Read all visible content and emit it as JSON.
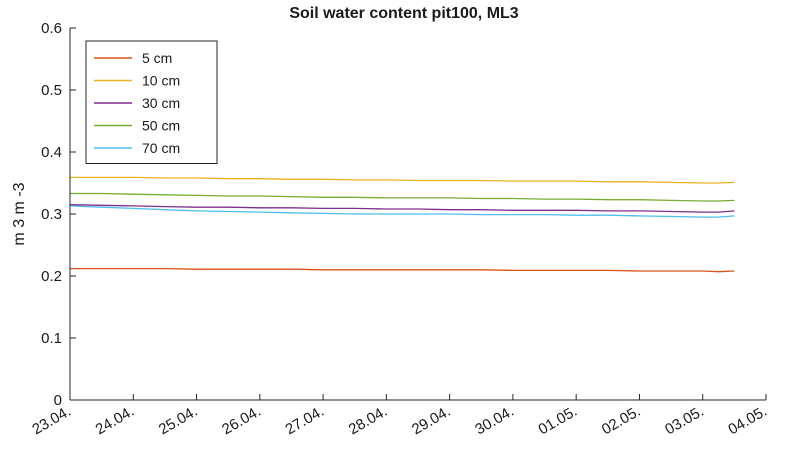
{
  "chart_data": {
    "type": "line",
    "title": "Soil water content pit100, ML3",
    "ylabel": "m 3 m -3",
    "xlabel": "",
    "x_ticks": [
      "23.04.",
      "24.04.",
      "25.04.",
      "26.04.",
      "27.04.",
      "28.04.",
      "29.04.",
      "30.04.",
      "01.05.",
      "02.05.",
      "03.05.",
      "04.05."
    ],
    "xlim": [
      0,
      11
    ],
    "ylim": [
      0,
      0.6
    ],
    "y_ticks": [
      0,
      0.1,
      0.2,
      0.3,
      0.4,
      0.5,
      0.6
    ],
    "grid": false,
    "legend_position": "top-left",
    "x": [
      0,
      0.5,
      1,
      1.5,
      2,
      2.5,
      3,
      3.5,
      4,
      4.5,
      5,
      5.5,
      6,
      6.5,
      7,
      7.5,
      8,
      8.5,
      9,
      9.5,
      10,
      10.25,
      10.5,
      10.75,
      11
    ],
    "x_end": 10.5,
    "series": [
      {
        "name": "5 cm",
        "color": "#d95319",
        "values": [
          0.212,
          0.212,
          0.212,
          0.212,
          0.211,
          0.211,
          0.211,
          0.211,
          0.21,
          0.21,
          0.21,
          0.21,
          0.21,
          0.21,
          0.209,
          0.209,
          0.209,
          0.209,
          0.208,
          0.208,
          0.208,
          0.207,
          0.208,
          0.209,
          0.209
        ]
      },
      {
        "name": "10 cm",
        "color": "#edb120",
        "values": [
          0.359,
          0.359,
          0.359,
          0.358,
          0.358,
          0.357,
          0.357,
          0.356,
          0.356,
          0.355,
          0.355,
          0.354,
          0.354,
          0.354,
          0.353,
          0.353,
          0.353,
          0.352,
          0.352,
          0.351,
          0.35,
          0.35,
          0.351,
          0.352,
          0.352
        ]
      },
      {
        "name": "30 cm",
        "color": "#7e2f8e",
        "values": [
          0.315,
          0.314,
          0.313,
          0.312,
          0.311,
          0.311,
          0.31,
          0.31,
          0.309,
          0.309,
          0.308,
          0.308,
          0.307,
          0.307,
          0.306,
          0.306,
          0.306,
          0.305,
          0.305,
          0.304,
          0.303,
          0.303,
          0.305,
          0.306,
          0.307
        ]
      },
      {
        "name": "50 cm",
        "color": "#77ac30",
        "values": [
          0.333,
          0.333,
          0.332,
          0.331,
          0.33,
          0.329,
          0.329,
          0.328,
          0.327,
          0.327,
          0.326,
          0.326,
          0.326,
          0.325,
          0.325,
          0.324,
          0.324,
          0.323,
          0.323,
          0.322,
          0.321,
          0.321,
          0.322,
          0.324,
          0.325
        ]
      },
      {
        "name": "70 cm",
        "color": "#4dbeee",
        "values": [
          0.313,
          0.311,
          0.309,
          0.307,
          0.305,
          0.304,
          0.303,
          0.302,
          0.301,
          0.3,
          0.3,
          0.3,
          0.3,
          0.299,
          0.299,
          0.299,
          0.298,
          0.298,
          0.297,
          0.296,
          0.295,
          0.295,
          0.297,
          0.3,
          0.301
        ]
      }
    ]
  }
}
